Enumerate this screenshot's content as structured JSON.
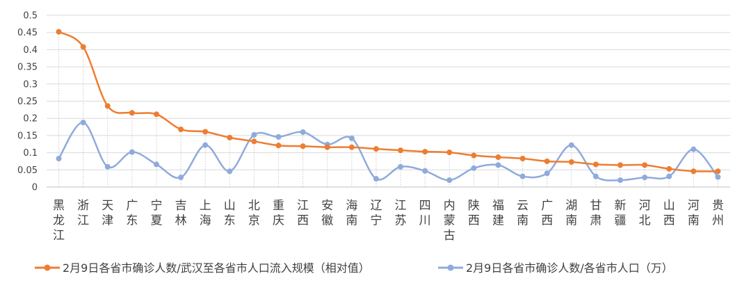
{
  "chart_data": {
    "type": "line",
    "categories": [
      "黑龙江",
      "浙江",
      "天津",
      "广东",
      "宁夏",
      "吉林",
      "上海",
      "山东",
      "北京",
      "重庆",
      "江西",
      "安徽",
      "海南",
      "辽宁",
      "江苏",
      "四川",
      "内蒙古",
      "陕西",
      "福建",
      "云南",
      "广西",
      "湖南",
      "甘肃",
      "新疆",
      "河北",
      "山西",
      "河南",
      "贵州"
    ],
    "ylim": [
      0,
      0.5
    ],
    "yticks": [
      "0",
      "0.05",
      "0.1",
      "0.15",
      "0.2",
      "0.25",
      "0.3",
      "0.35",
      "0.4",
      "0.45",
      "0.5"
    ],
    "grid": true,
    "legend_position": "bottom",
    "series": [
      {
        "name": "2月9日各省市确诊人数/武汉至各省市人口流入规模（相对值）",
        "color": "#ED7D31",
        "smooth": true,
        "values": [
          0.452,
          0.408,
          0.236,
          0.216,
          0.212,
          0.168,
          0.161,
          0.144,
          0.133,
          0.121,
          0.119,
          0.116,
          0.116,
          0.111,
          0.107,
          0.103,
          0.101,
          0.092,
          0.087,
          0.083,
          0.075,
          0.073,
          0.066,
          0.064,
          0.064,
          0.053,
          0.046,
          0.046
        ]
      },
      {
        "name": "2月9日各省市确诊人数/各省市人口（万）",
        "color": "#8FAADC",
        "smooth": true,
        "values": [
          0.083,
          0.188,
          0.059,
          0.102,
          0.066,
          0.028,
          0.122,
          0.046,
          0.152,
          0.146,
          0.16,
          0.124,
          0.142,
          0.024,
          0.059,
          0.047,
          0.02,
          0.055,
          0.064,
          0.031,
          0.04,
          0.122,
          0.031,
          0.02,
          0.028,
          0.031,
          0.11,
          0.029
        ]
      }
    ]
  }
}
